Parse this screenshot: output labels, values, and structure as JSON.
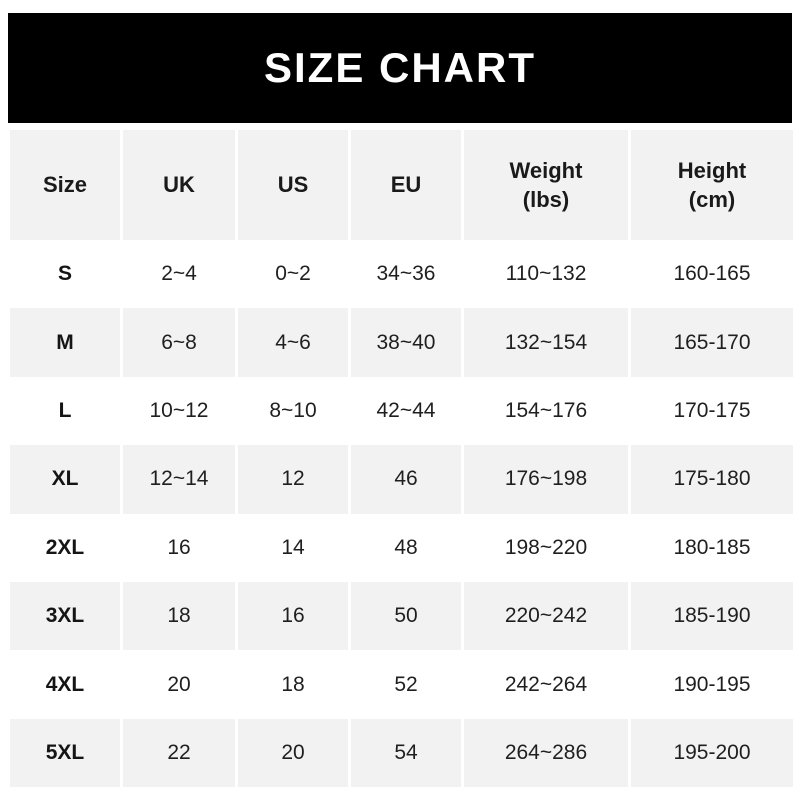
{
  "banner": {
    "title": "SIZE CHART"
  },
  "table": {
    "columns": [
      {
        "label": "Size",
        "sub": ""
      },
      {
        "label": "UK",
        "sub": ""
      },
      {
        "label": "US",
        "sub": ""
      },
      {
        "label": "EU",
        "sub": ""
      },
      {
        "label": "Weight",
        "sub": "(lbs)"
      },
      {
        "label": "Height",
        "sub": "(cm)"
      }
    ]
  },
  "chart_data": {
    "type": "table",
    "title": "SIZE CHART",
    "columns": [
      "Size",
      "UK",
      "US",
      "EU",
      "Weight (lbs)",
      "Height (cm)"
    ],
    "rows": [
      [
        "S",
        "2~4",
        "0~2",
        "34~36",
        "110~132",
        "160-165"
      ],
      [
        "M",
        "6~8",
        "4~6",
        "38~40",
        "132~154",
        "165-170"
      ],
      [
        "L",
        "10~12",
        "8~10",
        "42~44",
        "154~176",
        "170-175"
      ],
      [
        "XL",
        "12~14",
        "12",
        "46",
        "176~198",
        "175-180"
      ],
      [
        "2XL",
        "16",
        "14",
        "48",
        "198~220",
        "180-185"
      ],
      [
        "3XL",
        "18",
        "16",
        "50",
        "220~242",
        "185-190"
      ],
      [
        "4XL",
        "20",
        "18",
        "52",
        "242~264",
        "190-195"
      ],
      [
        "5XL",
        "22",
        "20",
        "54",
        "264~286",
        "195-200"
      ]
    ],
    "layout": {
      "header_background": "#f2f2f2",
      "stripe_background": "#f2f2f2",
      "row_background": "#ffffff",
      "banner_background": "#000000",
      "banner_text_color": "#ffffff",
      "text_color": "#1f1f1f",
      "striped_rows": [
        "M",
        "XL",
        "3XL",
        "5XL"
      ]
    }
  }
}
